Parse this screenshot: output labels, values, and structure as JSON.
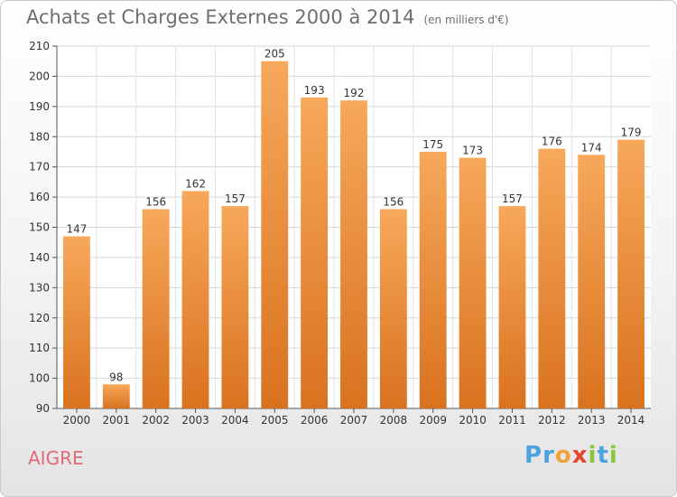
{
  "chart_data": {
    "type": "bar",
    "title": "Achats et Charges Externes 2000 à 2014",
    "subtitle": "(en milliers d'€)",
    "categories": [
      "2000",
      "2001",
      "2002",
      "2003",
      "2004",
      "2005",
      "2006",
      "2007",
      "2008",
      "2009",
      "2010",
      "2011",
      "2012",
      "2013",
      "2014"
    ],
    "values": [
      147,
      98,
      156,
      162,
      157,
      205,
      193,
      192,
      156,
      175,
      173,
      157,
      176,
      174,
      179
    ],
    "ylim": [
      90,
      210
    ],
    "yticks": [
      90,
      100,
      110,
      120,
      130,
      140,
      150,
      160,
      170,
      180,
      190,
      200,
      210
    ],
    "grid": true,
    "legend": "none",
    "bar_color_top": "#f7a85a",
    "bar_color_bottom": "#d9721f"
  },
  "commune": "AIGRE",
  "brand": {
    "text": "Proxiti",
    "letters": [
      "P",
      "r",
      "o",
      "x",
      "i",
      "t",
      "i"
    ],
    "colors": [
      "#4aa3df",
      "#4aa3df",
      "#f2a23a",
      "#e5462f",
      "#8cc63f",
      "#4aa3df",
      "#8cc63f"
    ]
  }
}
